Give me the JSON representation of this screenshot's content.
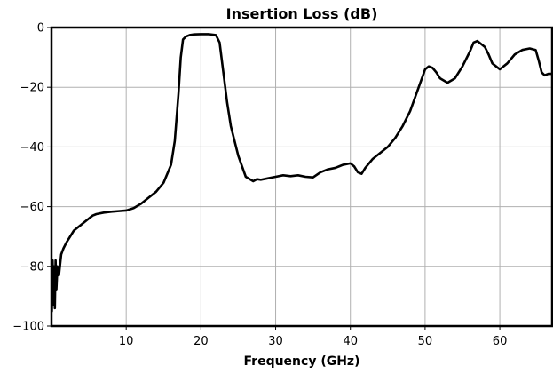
{
  "chart_data": {
    "type": "line",
    "title": "Insertion Loss (dB)",
    "xlabel": "Frequency (GHz)",
    "ylabel": "",
    "xlim": [
      0,
      67
    ],
    "ylim": [
      -100,
      0
    ],
    "x_ticks": [
      10,
      20,
      30,
      40,
      50,
      60
    ],
    "y_ticks": [
      0,
      -20,
      -40,
      -60,
      -80,
      -100
    ],
    "x_tick_labels": [
      "10",
      "20",
      "30",
      "40",
      "50",
      "60"
    ],
    "y_tick_labels": [
      "0",
      "−20",
      "−40",
      "−60",
      "−80",
      "−100"
    ],
    "grid": true,
    "legend": "none",
    "colors": {
      "line": "#000000",
      "grid": "#b0b0b0",
      "frame": "#000000"
    },
    "series": [
      {
        "x": [
          0.05,
          0.15,
          0.25,
          0.35,
          0.45,
          0.55,
          0.65,
          0.8,
          1.0,
          1.3,
          1.6,
          2.0,
          2.5,
          3.0,
          3.5,
          4.0,
          4.5,
          5.0,
          5.5,
          6.0,
          7.0,
          8.0,
          9.0,
          10.0,
          11.0,
          12.0,
          13.0,
          14.0,
          15.0,
          16.0,
          16.5,
          17.0,
          17.3,
          17.6,
          18.0,
          18.5,
          19.0,
          20.0,
          21.0,
          22.0,
          22.5,
          23.0,
          23.5,
          24.0,
          25.0,
          26.0,
          27.0,
          27.5,
          28.0,
          29.0,
          30.0,
          31.0,
          32.0,
          33.0,
          34.0,
          35.0,
          36.0,
          37.0,
          38.0,
          39.0,
          40.0,
          40.5,
          41.0,
          41.5,
          42.0,
          43.0,
          44.0,
          45.0,
          46.0,
          47.0,
          48.0,
          49.0,
          50.0,
          50.5,
          51.0,
          51.5,
          52.0,
          53.0,
          54.0,
          55.0,
          56.0,
          56.5,
          57.0,
          57.5,
          58.0,
          58.5,
          59.0,
          60.0,
          61.0,
          62.0,
          63.0,
          64.0,
          64.8,
          65.2,
          65.6,
          66.0,
          66.5,
          67.0
        ],
        "y": [
          -95,
          -78,
          -93,
          -80,
          -94,
          -78,
          -88,
          -80,
          -83,
          -76,
          -74,
          -72,
          -70,
          -68,
          -67,
          -66,
          -65,
          -64,
          -63,
          -62.5,
          -62,
          -61.7,
          -61.5,
          -61.3,
          -60.5,
          -59,
          -57,
          -55,
          -52,
          -46,
          -38,
          -22,
          -10,
          -4,
          -3,
          -2.5,
          -2.3,
          -2.2,
          -2.2,
          -2.5,
          -5,
          -15,
          -25,
          -33,
          -43,
          -50,
          -51.5,
          -50.8,
          -51,
          -50.5,
          -50,
          -49.5,
          -49.8,
          -49.5,
          -50,
          -50.2,
          -48.5,
          -47.5,
          -47,
          -46,
          -45.5,
          -46.5,
          -48.5,
          -49,
          -47,
          -44,
          -42,
          -40,
          -37,
          -33,
          -28,
          -21,
          -14,
          -13,
          -13.5,
          -15,
          -17,
          -18.5,
          -17,
          -13,
          -8,
          -5,
          -4.5,
          -5.5,
          -6.5,
          -9,
          -12,
          -14,
          -12,
          -9,
          -7.5,
          -7,
          -7.5,
          -11,
          -15,
          -16,
          -15.5,
          -15.5
        ]
      }
    ]
  }
}
